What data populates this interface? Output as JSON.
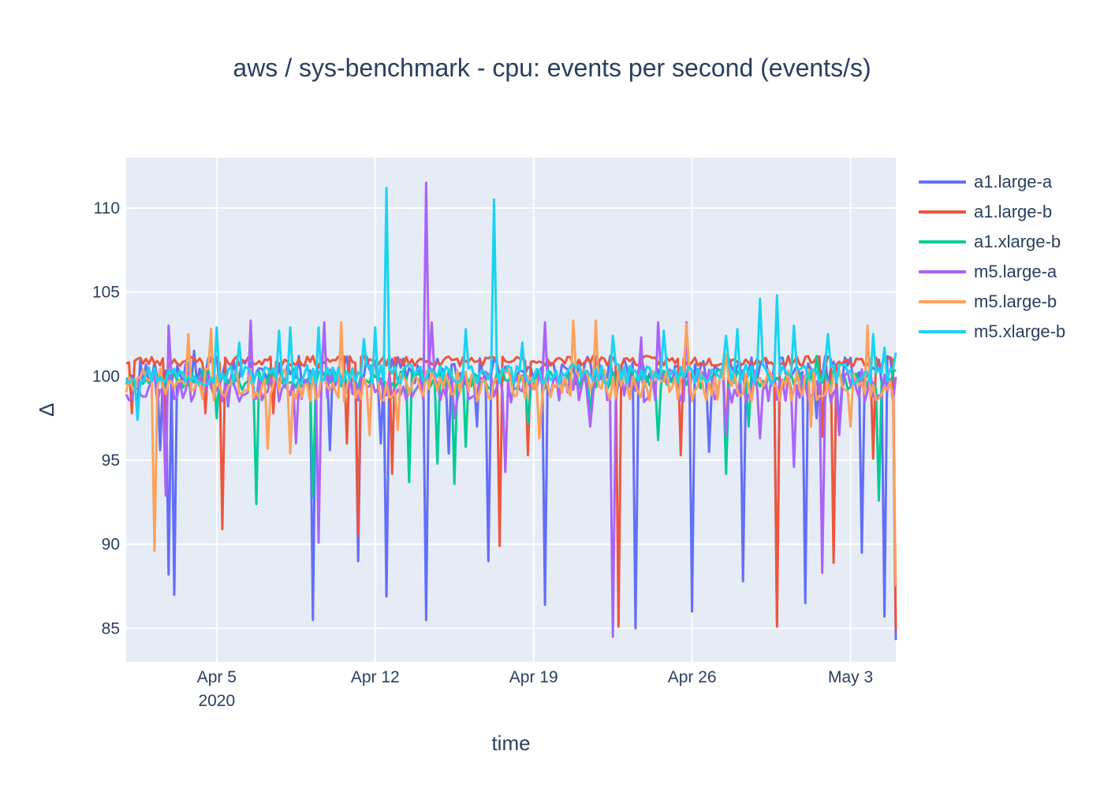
{
  "chart_data": {
    "type": "line",
    "title": "aws / sys-benchmark - cpu: events per second (events/s)",
    "xlabel": "time",
    "ylabel": "Δ",
    "xlim": [
      "2020-04-01",
      "2020-05-05"
    ],
    "ylim": [
      83,
      113
    ],
    "x_ticks": [
      {
        "date": "2020-04-05",
        "label": "Apr 5",
        "sublabel": "2020"
      },
      {
        "date": "2020-04-12",
        "label": "Apr 12"
      },
      {
        "date": "2020-04-19",
        "label": "Apr 19"
      },
      {
        "date": "2020-04-26",
        "label": "Apr 26"
      },
      {
        "date": "2020-05-03",
        "label": "May 3"
      }
    ],
    "y_ticks": [
      85,
      90,
      95,
      100,
      105,
      110
    ],
    "grid": true,
    "legend_position": "top-right",
    "plot_bgcolor": "#e5ecf6",
    "series": [
      {
        "name": "a1.large-a",
        "color": "#636efa",
        "base": 100.3,
        "amp": 0.9,
        "seed": 11,
        "spikes": [
          [
            "2020-04-01T12:00",
            98.0
          ],
          [
            "2020-04-02T12:00",
            95.6
          ],
          [
            "2020-04-04T00:00",
            101.5
          ],
          [
            "2020-04-02T20:00",
            88.2
          ],
          [
            "2020-04-03T04:00",
            87.0
          ],
          [
            "2020-04-05T12:00",
            98.2
          ],
          [
            "2020-04-09T06:00",
            85.5
          ],
          [
            "2020-04-10T00:00",
            95.6
          ],
          [
            "2020-04-11T06:00",
            89.0
          ],
          [
            "2020-04-12T06:00",
            96.0
          ],
          [
            "2020-04-12T12:00",
            86.9
          ],
          [
            "2020-04-14T06:00",
            85.5
          ],
          [
            "2020-04-15T06:00",
            95.4
          ],
          [
            "2020-04-16T12:00",
            97.0
          ],
          [
            "2020-04-17T00:00",
            89.0
          ],
          [
            "2020-04-19T12:00",
            86.4
          ],
          [
            "2020-04-23T12:00",
            85.0
          ],
          [
            "2020-04-26T00:00",
            86.0
          ],
          [
            "2020-04-26T18:00",
            95.5
          ],
          [
            "2020-04-28T06:00",
            87.8
          ],
          [
            "2020-04-29T18:00",
            85.5
          ],
          [
            "2020-05-01T00:00",
            86.5
          ],
          [
            "2020-05-01T12:00",
            97.5
          ],
          [
            "2020-05-02T12:00",
            97.0
          ],
          [
            "2020-05-03T12:00",
            89.5
          ],
          [
            "2020-05-04T12:00",
            85.7
          ],
          [
            "2020-05-04T23:00",
            84.3
          ]
        ]
      },
      {
        "name": "a1.large-b",
        "color": "#ef553b",
        "base": 100.9,
        "amp": 0.3,
        "seed": 23,
        "spikes": [
          [
            "2020-04-01T06:00",
            97.8
          ],
          [
            "2020-04-02T18:00",
            96.5
          ],
          [
            "2020-04-04T12:00",
            97.8
          ],
          [
            "2020-04-05T06:00",
            90.9
          ],
          [
            "2020-04-07T12:00",
            97.8
          ],
          [
            "2020-04-10T18:00",
            96.0
          ],
          [
            "2020-04-11T06:00",
            90.5
          ],
          [
            "2020-04-12T18:00",
            94.2
          ],
          [
            "2020-04-17T12:00",
            89.9
          ],
          [
            "2020-04-18T18:00",
            95.3
          ],
          [
            "2020-04-22T18:00",
            85.1
          ],
          [
            "2020-04-25T12:00",
            95.3
          ],
          [
            "2020-04-27T12:00",
            96.0
          ],
          [
            "2020-04-29T18:00",
            85.1
          ],
          [
            "2020-05-01T18:00",
            96.4
          ],
          [
            "2020-05-02T06:00",
            88.9
          ],
          [
            "2020-05-04T00:00",
            95.1
          ],
          [
            "2020-05-05T00:00",
            84.9
          ]
        ]
      },
      {
        "name": "a1.xlarge-b",
        "color": "#00cc96",
        "base": 99.8,
        "amp": 0.6,
        "seed": 37,
        "spikes": [
          [
            "2020-04-05T00:00",
            97.5
          ],
          [
            "2020-04-06T18:00",
            92.4
          ],
          [
            "2020-04-09T06:00",
            92.8
          ],
          [
            "2020-04-13T12:00",
            93.7
          ],
          [
            "2020-04-14T18:00",
            94.8
          ],
          [
            "2020-04-15T12:00",
            93.6
          ],
          [
            "2020-04-16T00:00",
            95.8
          ],
          [
            "2020-04-18T18:00",
            97.2
          ],
          [
            "2020-04-21T12:00",
            97.5
          ],
          [
            "2020-04-24T12:00",
            96.2
          ],
          [
            "2020-04-27T12:00",
            94.2
          ],
          [
            "2020-04-28T12:00",
            97.0
          ],
          [
            "2020-05-01T12:00",
            101.2
          ],
          [
            "2020-05-04T06:00",
            92.6
          ]
        ]
      },
      {
        "name": "m5.large-a",
        "color": "#ab63fa",
        "base": 99.4,
        "amp": 1.0,
        "seed": 53,
        "spikes": [
          [
            "2020-04-02T18:00",
            92.9
          ],
          [
            "2020-04-02T21:00",
            103.0
          ],
          [
            "2020-04-06T12:00",
            103.3
          ],
          [
            "2020-04-08T12:00",
            96.0
          ],
          [
            "2020-04-09T12:00",
            90.1
          ],
          [
            "2020-04-09T18:00",
            103.2
          ],
          [
            "2020-04-14T06:00",
            111.5
          ],
          [
            "2020-04-14T12:00",
            103.2
          ],
          [
            "2020-04-15T12:00",
            97.5
          ],
          [
            "2020-04-17T18:00",
            94.3
          ],
          [
            "2020-04-19T12:00",
            103.2
          ],
          [
            "2020-04-21T12:00",
            97.0
          ],
          [
            "2020-04-22T12:00",
            84.5
          ],
          [
            "2020-04-23T18:00",
            102.3
          ],
          [
            "2020-04-24T12:00",
            103.2
          ],
          [
            "2020-04-25T18:00",
            103.2
          ],
          [
            "2020-04-27T12:00",
            96.5
          ],
          [
            "2020-04-29T00:00",
            96.3
          ],
          [
            "2020-04-30T12:00",
            94.6
          ],
          [
            "2020-05-01T18:00",
            88.3
          ],
          [
            "2020-05-02T12:00",
            96.5
          ]
        ]
      },
      {
        "name": "m5.large-b",
        "color": "#ffa15a",
        "base": 99.5,
        "amp": 1.0,
        "seed": 71,
        "spikes": [
          [
            "2020-04-02T06:00",
            89.6
          ],
          [
            "2020-04-03T18:00",
            102.5
          ],
          [
            "2020-04-04T18:00",
            102.8
          ],
          [
            "2020-04-07T06:00",
            95.7
          ],
          [
            "2020-04-08T06:00",
            95.4
          ],
          [
            "2020-04-10T12:00",
            103.2
          ],
          [
            "2020-04-11T18:00",
            96.5
          ],
          [
            "2020-04-12T00:00",
            102.3
          ],
          [
            "2020-04-13T00:00",
            96.8
          ],
          [
            "2020-04-19T06:00",
            96.3
          ],
          [
            "2020-04-20T18:00",
            103.3
          ],
          [
            "2020-04-21T18:00",
            103.3
          ],
          [
            "2020-04-25T18:00",
            103.1
          ],
          [
            "2020-04-27T12:00",
            101.3
          ],
          [
            "2020-05-01T06:00",
            97.0
          ],
          [
            "2020-05-03T00:00",
            97.0
          ],
          [
            "2020-05-03T18:00",
            103.0
          ],
          [
            "2020-05-04T23:00",
            87.5
          ]
        ]
      },
      {
        "name": "m5.xlarge-b",
        "color": "#19d3f3",
        "base": 100.1,
        "amp": 0.6,
        "seed": 97,
        "spikes": [
          [
            "2020-04-01T12:00",
            97.4
          ],
          [
            "2020-04-05T00:00",
            102.9
          ],
          [
            "2020-04-06T00:00",
            102.0
          ],
          [
            "2020-04-07T18:00",
            102.7
          ],
          [
            "2020-04-08T06:00",
            102.9
          ],
          [
            "2020-04-09T12:00",
            102.9
          ],
          [
            "2020-04-11T12:00",
            102.2
          ],
          [
            "2020-04-12T00:00",
            102.9
          ],
          [
            "2020-04-12T12:00",
            111.2
          ],
          [
            "2020-04-16T00:00",
            102.8
          ],
          [
            "2020-04-17T06:00",
            110.5
          ],
          [
            "2020-04-18T12:00",
            102.0
          ],
          [
            "2020-04-22T12:00",
            102.4
          ],
          [
            "2020-04-24T18:00",
            102.7
          ],
          [
            "2020-04-27T12:00",
            102.4
          ],
          [
            "2020-04-28T00:00",
            102.8
          ],
          [
            "2020-04-29T00:00",
            104.6
          ],
          [
            "2020-04-29T18:00",
            104.8
          ],
          [
            "2020-04-30T12:00",
            103.0
          ],
          [
            "2020-05-02T00:00",
            102.5
          ],
          [
            "2020-05-04T00:00",
            102.5
          ],
          [
            "2020-05-04T12:00",
            101.7
          ],
          [
            "2020-05-05T00:00",
            101.4
          ]
        ]
      }
    ]
  }
}
